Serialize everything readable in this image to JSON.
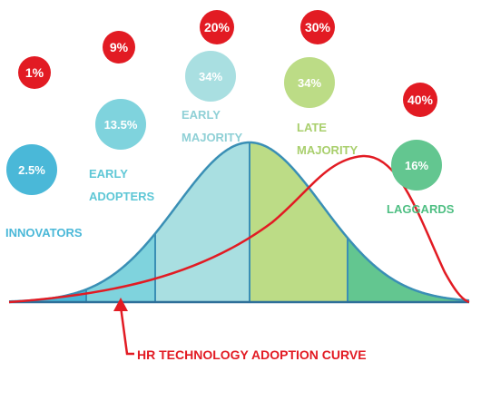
{
  "colors": {
    "innovators": "#4ab8d8",
    "early_adopters": "#7fd3dd",
    "early_majority": "#a9dfe1",
    "late_majority": "#bcdc86",
    "laggards": "#63c690",
    "adoption_bubble": "#e21b23",
    "bell_outline": "#3a8fb5",
    "adoption_curve": "#e21b23",
    "baseline": "#2e6f99"
  },
  "segments": [
    {
      "id": "innovators",
      "label_lines": [
        "INNOVATORS"
      ],
      "share": "2.5%",
      "adoption": "1%",
      "label_color": "#4ab8d8"
    },
    {
      "id": "early_adopters",
      "label_lines": [
        "EARLY",
        "ADOPTERS"
      ],
      "share": "13.5%",
      "adoption": "9%",
      "label_color": "#5ec7d6"
    },
    {
      "id": "early_majority",
      "label_lines": [
        "EARLY",
        "MAJORITY"
      ],
      "share": "34%",
      "adoption": "20%",
      "label_color": "#8fd0d6"
    },
    {
      "id": "late_majority",
      "label_lines": [
        "LATE",
        "MAJORITY"
      ],
      "share": "34%",
      "adoption": "30%",
      "label_color": "#a9cf6d"
    },
    {
      "id": "laggards",
      "label_lines": [
        "LAGGARDS"
      ],
      "share": "16%",
      "adoption": "40%",
      "label_color": "#4fbf83"
    }
  ],
  "caption": "HR TECHNOLOGY ADOPTION CURVE"
}
